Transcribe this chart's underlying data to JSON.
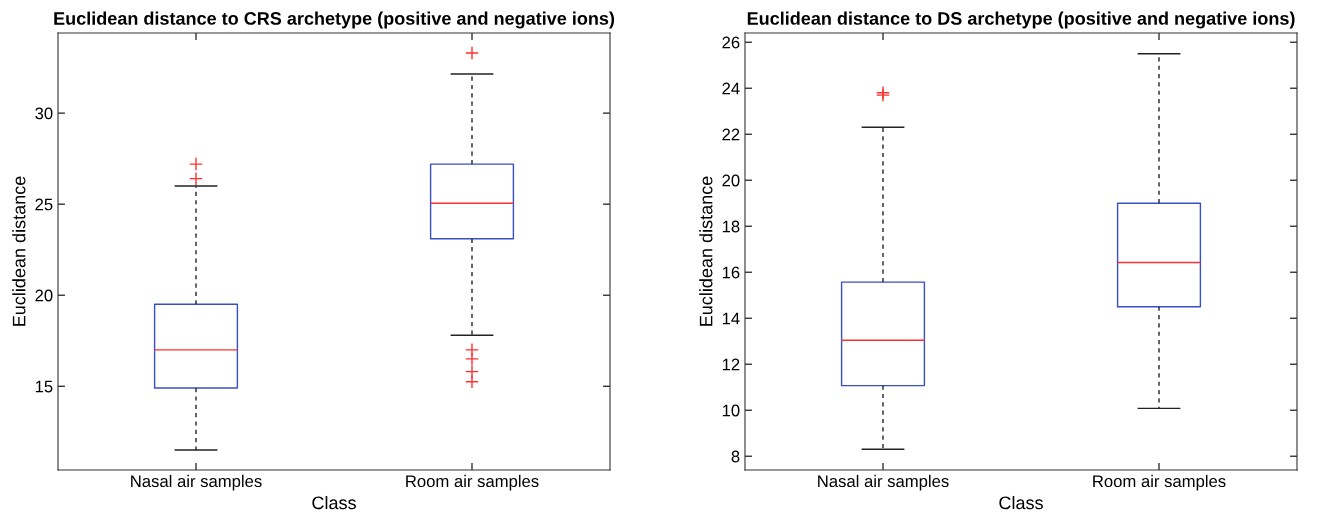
{
  "chart_data": [
    {
      "type": "box",
      "title": "Euclidean distance to CRS archetype (positive and negative ions)",
      "xlabel": "Class",
      "ylabel": "Euclidean distance",
      "categories": [
        "Nasal air samples",
        "Room air samples"
      ],
      "ylim": [
        10.4,
        34.4
      ],
      "yticks": [
        15,
        20,
        25,
        30
      ],
      "grid": false,
      "marker": "cross",
      "boxes": [
        {
          "low": 11.5,
          "q1": 14.9,
          "median": 17.0,
          "q3": 19.5,
          "high": 26.0,
          "outliers": [
            26.4,
            27.2
          ]
        },
        {
          "low": 17.8,
          "q1": 23.1,
          "median": 25.05,
          "q3": 27.2,
          "high": 32.15,
          "outliers": [
            33.3,
            17.0,
            16.5,
            15.8,
            15.25
          ]
        }
      ]
    },
    {
      "type": "box",
      "title": "Euclidean distance to DS archetype (positive and negative ions)",
      "xlabel": "Class",
      "ylabel": "Euclidean distance",
      "categories": [
        "Nasal air samples",
        "Room air samples"
      ],
      "ylim": [
        7.4,
        26.4
      ],
      "yticks": [
        8,
        10,
        12,
        14,
        16,
        18,
        20,
        22,
        24,
        26
      ],
      "grid": false,
      "marker": "cross",
      "boxes": [
        {
          "low": 8.3,
          "q1": 11.07,
          "median": 13.04,
          "q3": 15.57,
          "high": 22.3,
          "outliers": [
            23.7,
            23.8
          ]
        },
        {
          "low": 10.08,
          "q1": 14.5,
          "median": 16.42,
          "q3": 19.0,
          "high": 25.5
        }
      ]
    }
  ]
}
